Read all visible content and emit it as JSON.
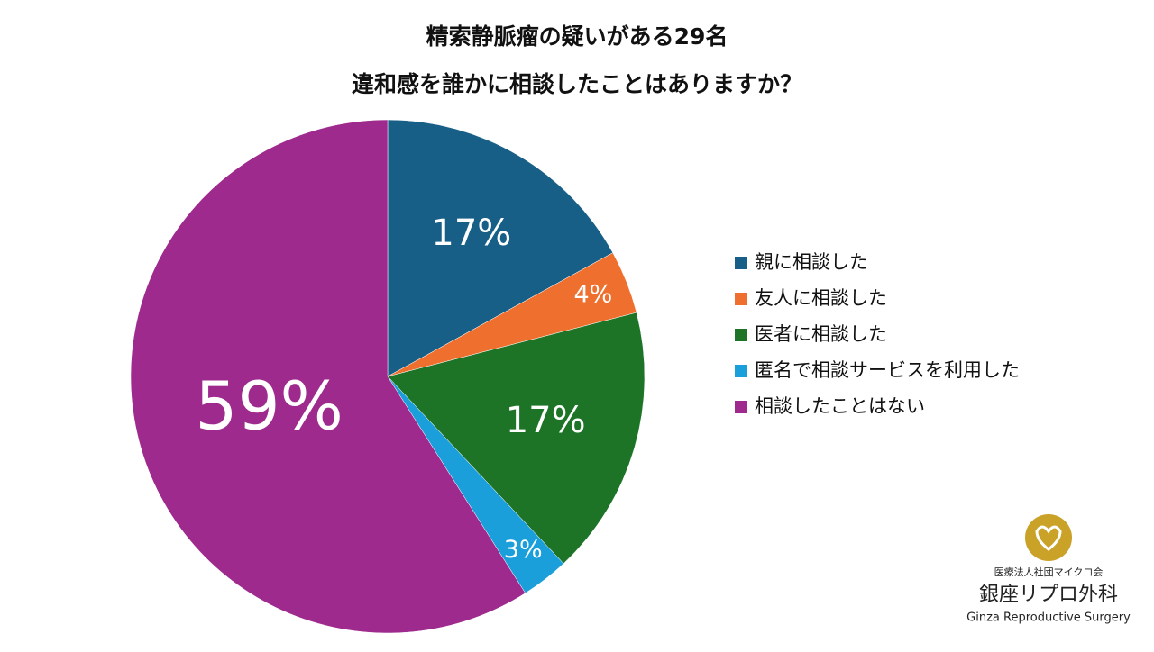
{
  "chart_data": {
    "type": "pie",
    "title": [
      "精索静脈瘤の疑いがある29名",
      "違和感を誰かに相談したことはありますか？"
    ],
    "categories": [
      "親に相談した",
      "友人に相談した",
      "医者に相談した",
      "匿名で相談サービスを利用した",
      "相談したことはない"
    ],
    "values": [
      17,
      4,
      17,
      3,
      59
    ],
    "value_labels": [
      "17%",
      "4%",
      "17%",
      "3%",
      "59%"
    ],
    "colors": [
      "#175f86",
      "#ef6f2e",
      "#1d7427",
      "#1a9fdb",
      "#9e2a8d"
    ],
    "legend": "right"
  },
  "logo": {
    "org": "医療法人社団マイクロ会",
    "name": "銀座リプロ外科",
    "english": "Ginza Reproductive Surgery"
  }
}
